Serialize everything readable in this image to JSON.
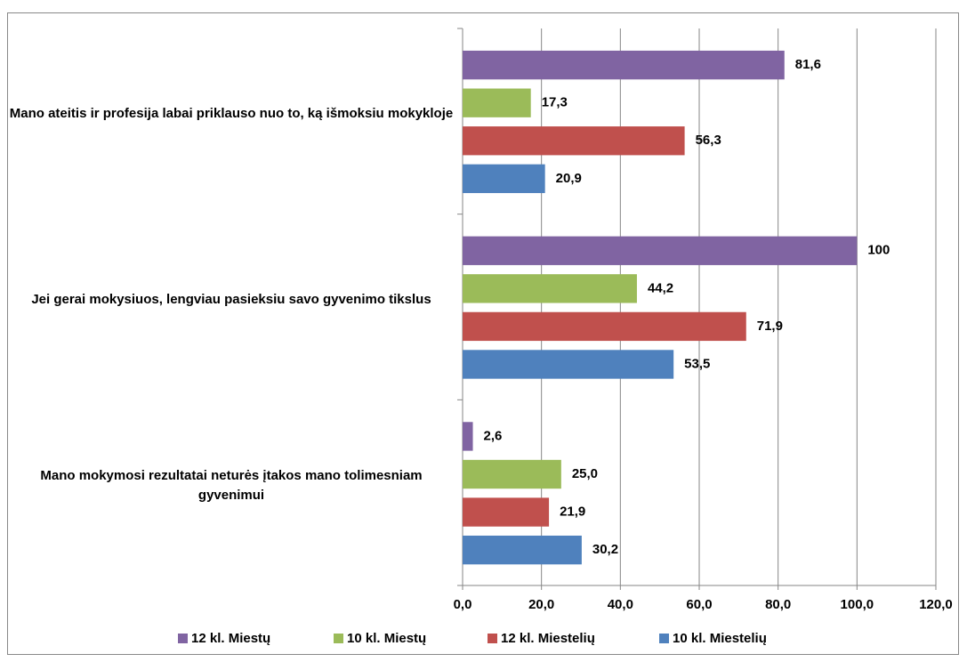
{
  "chart_data": {
    "type": "bar",
    "orientation": "horizontal",
    "categories": [
      "Mano ateitis ir profesija labai priklauso nuo to, ką išmoksiu mokykloje",
      "Jei gerai mokysiuos, lengviau pasieksiu savo gyvenimo tikslus",
      "Mano mokymosi rezultatai neturės įtakos mano tolimesniam gyvenimui"
    ],
    "series": [
      {
        "name": "12 kl. Miestų",
        "color": "#8064a2",
        "values": [
          81.6,
          100,
          2.6
        ],
        "value_labels": [
          "81,6",
          "100",
          "2,6"
        ]
      },
      {
        "name": "10 kl. Miestų",
        "color": "#9bbb59",
        "values": [
          17.3,
          44.2,
          25.0
        ],
        "value_labels": [
          "17,3",
          "44,2",
          "25,0"
        ]
      },
      {
        "name": "12 kl. Miestelių",
        "color": "#c0504d",
        "values": [
          56.3,
          71.9,
          21.9
        ],
        "value_labels": [
          "56,3",
          "71,9",
          "21,9"
        ]
      },
      {
        "name": "10 kl. Miestelių",
        "color": "#4f81bd",
        "values": [
          20.9,
          53.5,
          30.2
        ],
        "value_labels": [
          "20,9",
          "53,5",
          "30,2"
        ]
      }
    ],
    "xlim": [
      0,
      120
    ],
    "xticks": [
      {
        "value": 0,
        "label": "0,0"
      },
      {
        "value": 20,
        "label": "20,0"
      },
      {
        "value": 40,
        "label": "40,0"
      },
      {
        "value": 60,
        "label": "60,0"
      },
      {
        "value": 80,
        "label": "80,0"
      },
      {
        "value": 100,
        "label": "100,0"
      },
      {
        "value": 120,
        "label": "120,0"
      }
    ],
    "grid": true,
    "legend": "bottom"
  }
}
